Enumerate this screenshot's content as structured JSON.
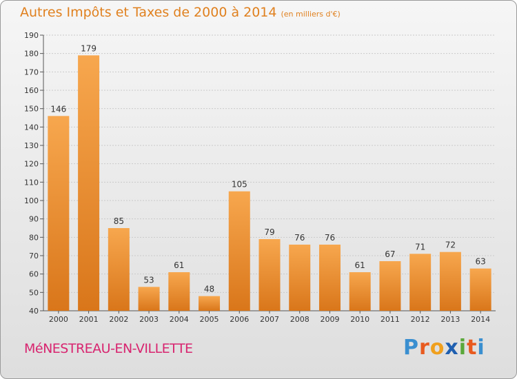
{
  "header": {
    "title": "Autres Impôts et Taxes de 2000 à 2014",
    "subtitle": "(en milliers d'€)"
  },
  "footer": {
    "commune": "MéNESTREAU-EN-VILLETTE",
    "logo_letters": [
      "P",
      "r",
      "o",
      "x",
      "i",
      "t",
      "i"
    ],
    "logo_colors": [
      "#3a8fd0",
      "#e85a1f",
      "#f0a01e",
      "#1f5fb0",
      "#5aa83a",
      "#e85a1f",
      "#3a8fd0"
    ]
  },
  "colors": {
    "bar_light": "#f7a74e",
    "bar_dark": "#d9761a",
    "title": "#e0801e",
    "commune": "#d8246f"
  },
  "chart_data": {
    "type": "bar",
    "title": "Autres Impôts et Taxes de 2000 à 2014",
    "subtitle": "(en milliers d'€)",
    "categories": [
      "2000",
      "2001",
      "2002",
      "2003",
      "2004",
      "2005",
      "2006",
      "2007",
      "2008",
      "2009",
      "2010",
      "2011",
      "2012",
      "2013",
      "2014"
    ],
    "values": [
      146,
      179,
      85,
      53,
      61,
      48,
      105,
      79,
      76,
      76,
      61,
      67,
      71,
      72,
      63
    ],
    "ylim": [
      40,
      190
    ],
    "yticks": [
      40,
      50,
      60,
      70,
      80,
      90,
      100,
      110,
      120,
      130,
      140,
      150,
      160,
      170,
      180,
      190
    ],
    "grid": true,
    "xlabel": "",
    "ylabel": ""
  }
}
